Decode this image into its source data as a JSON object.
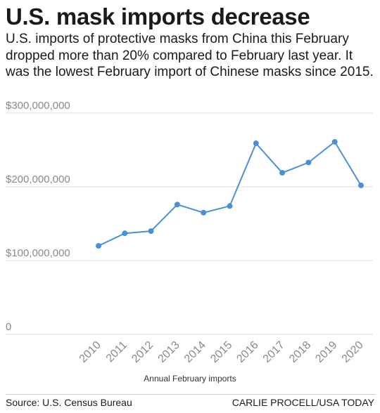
{
  "title": "U.S. mask imports decrease",
  "subtitle": "U.S. imports of protective masks from China this February dropped more than 20% compared to February last year. It was the lowest February import of Chinese masks since 2015.",
  "source": "Source: U.S. Census Bureau",
  "credit": "CARLIE PROCELL/USA TODAY",
  "chart_data": {
    "type": "line",
    "title": "U.S. mask imports decrease",
    "xlabel": "Annual February imports",
    "ylabel": "",
    "categories": [
      "2010",
      "2011",
      "2012",
      "2013",
      "2014",
      "2015",
      "2016",
      "2017",
      "2018",
      "2019",
      "2020"
    ],
    "series": [
      {
        "values": [
          120000000,
          137000000,
          140000000,
          176000000,
          165000000,
          174000000,
          259000000,
          219000000,
          233000000,
          261000000,
          202000000
        ]
      }
    ],
    "ylim": [
      0,
      300000000
    ],
    "y_ticks": [
      0,
      100000000,
      200000000,
      300000000
    ],
    "y_tick_labels": [
      "0",
      "$100,000,000",
      "$200,000,000",
      "$300,000,000"
    ],
    "grid": true,
    "line_color": "#4a90d9",
    "grid_color": "#dcdcdc"
  }
}
